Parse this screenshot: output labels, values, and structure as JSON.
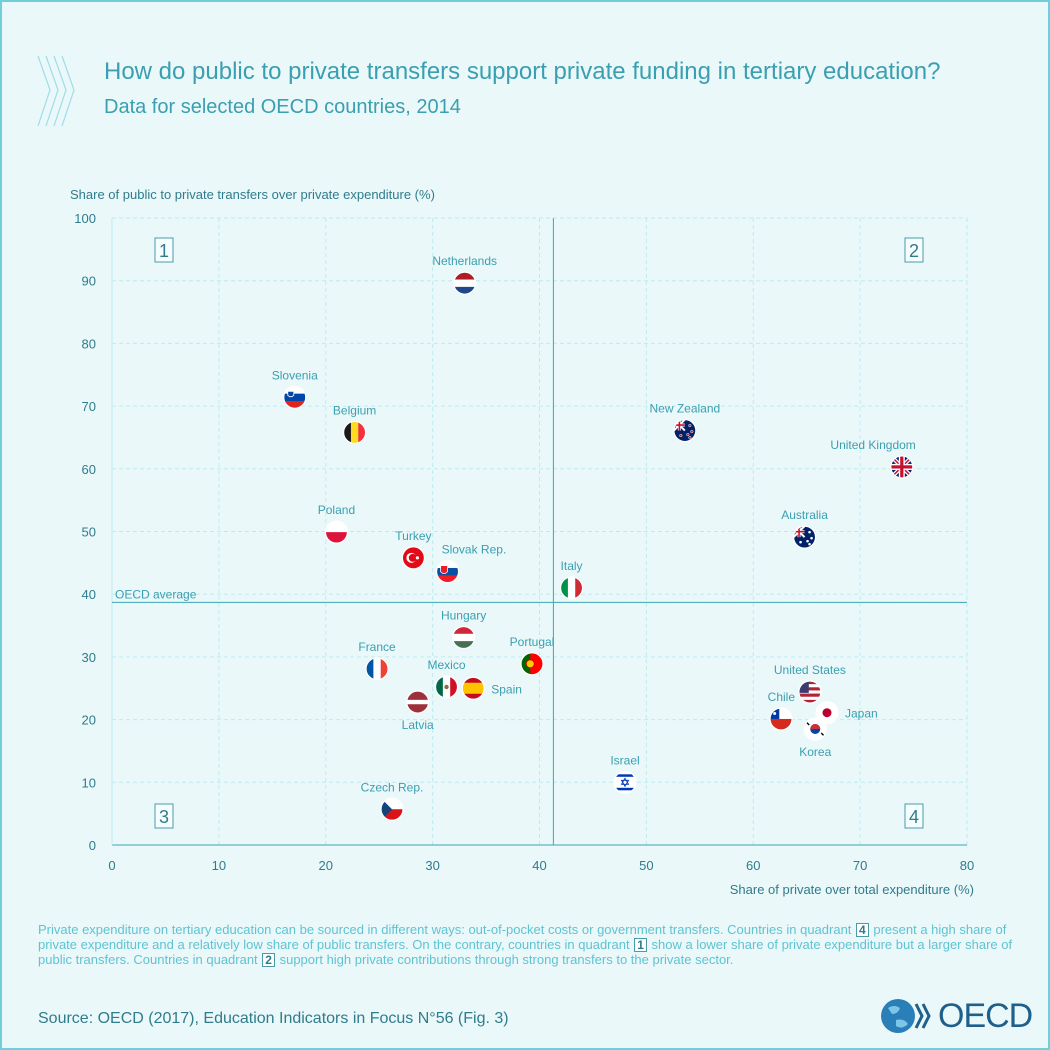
{
  "header": {
    "title": "How do public to private transfers support private funding in tertiary education?",
    "subtitle": "Data for selected OECD countries, 2014"
  },
  "colors": {
    "accent": "#3a9fb0",
    "grid": "#bfeaf0",
    "line": "#3aa6b8",
    "text": "#5fc3d1",
    "dark": "#2f7c8c"
  },
  "chart_data": {
    "type": "scatter",
    "ylabel": "Share of public to private transfers over private expenditure (%)",
    "xlabel": "Share of private over total expenditure (%)",
    "xlim": [
      0,
      80
    ],
    "ylim": [
      0,
      100
    ],
    "xticks": [
      0,
      10,
      20,
      30,
      40,
      50,
      60,
      70,
      80
    ],
    "yticks": [
      0,
      10,
      20,
      30,
      40,
      50,
      60,
      70,
      80,
      90,
      100
    ],
    "grid": true,
    "reference_lines": {
      "oecd_average_x": 41.3,
      "oecd_average_y": 38.7,
      "oecd_average_label": "OECD average"
    },
    "quadrant_labels": [
      "1",
      "2",
      "3",
      "4"
    ],
    "points": [
      {
        "label": "Netherlands",
        "x": 33.0,
        "y": 89.6,
        "flag": "netherlands"
      },
      {
        "label": "Slovenia",
        "x": 17.1,
        "y": 71.4,
        "flag": "slovenia"
      },
      {
        "label": "Belgium",
        "x": 22.7,
        "y": 65.8,
        "flag": "belgium"
      },
      {
        "label": "New Zealand",
        "x": 53.6,
        "y": 66.1,
        "flag": "new-zealand"
      },
      {
        "label": "United Kingdom",
        "x": 73.9,
        "y": 60.3,
        "flag": "united-kingdom"
      },
      {
        "label": "Poland",
        "x": 21.0,
        "y": 49.9,
        "flag": "poland"
      },
      {
        "label": "Australia",
        "x": 64.8,
        "y": 49.1,
        "flag": "australia"
      },
      {
        "label": "Turkey",
        "x": 28.2,
        "y": 45.8,
        "flag": "turkey"
      },
      {
        "label": "Slovak Rep.",
        "x": 31.4,
        "y": 43.6,
        "flag": "slovakia"
      },
      {
        "label": "Italy",
        "x": 43.0,
        "y": 41.0,
        "flag": "italy"
      },
      {
        "label": "Hungary",
        "x": 32.9,
        "y": 33.1,
        "flag": "hungary"
      },
      {
        "label": "France",
        "x": 24.8,
        "y": 28.1,
        "flag": "france"
      },
      {
        "label": "Portugal",
        "x": 39.3,
        "y": 28.9,
        "flag": "portugal"
      },
      {
        "label": "Mexico",
        "x": 31.3,
        "y": 25.2,
        "flag": "mexico"
      },
      {
        "label": "Spain",
        "x": 33.8,
        "y": 25.0,
        "flag": "spain"
      },
      {
        "label": "Latvia",
        "x": 28.6,
        "y": 22.8,
        "flag": "latvia"
      },
      {
        "label": "United States",
        "x": 65.3,
        "y": 24.4,
        "flag": "united-states"
      },
      {
        "label": "Chile",
        "x": 62.6,
        "y": 20.1,
        "flag": "chile"
      },
      {
        "label": "Japan",
        "x": 66.9,
        "y": 21.1,
        "flag": "japan"
      },
      {
        "label": "Korea",
        "x": 65.8,
        "y": 18.5,
        "flag": "korea"
      },
      {
        "label": "Israel",
        "x": 48.0,
        "y": 10.0,
        "flag": "israel"
      },
      {
        "label": "Czech Rep.",
        "x": 26.2,
        "y": 5.7,
        "flag": "czech"
      }
    ]
  },
  "note": {
    "part1": "Private expenditure on tertiary education can be sourced in different ways: out-of-pocket costs or government transfers. Countries in quadrant ",
    "q4": "4",
    "part2": " present a high share of private expenditure and a relatively low share of public transfers. On the contrary, countries in quadrant ",
    "q1": "1",
    "part3": " show a lower share of private expenditure but a larger share of public transfers. Countries in quadrant ",
    "q2": "2",
    "part4": " support high private contributions through strong transfers to the private sector."
  },
  "footer": {
    "source": "Source: OECD (2017), Education Indicators in Focus N°56 (Fig. 3)",
    "logo_text": "OECD"
  }
}
